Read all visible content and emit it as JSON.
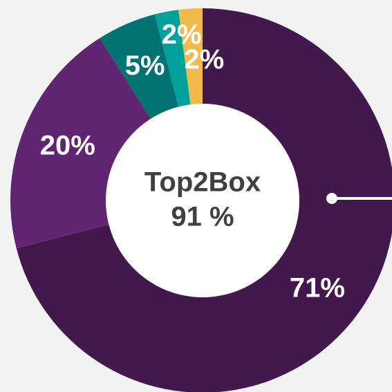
{
  "chart_data": {
    "type": "donut",
    "values": [
      71,
      20,
      5,
      2,
      2
    ],
    "value_labels": [
      "71%",
      "20%",
      "5%",
      "2%",
      "2%"
    ],
    "colors": [
      "#41194c",
      "#5f2570",
      "#007272",
      "#00a19b",
      "#f0bb4c"
    ],
    "center_text": [
      "Top2Box",
      "91 %"
    ]
  }
}
